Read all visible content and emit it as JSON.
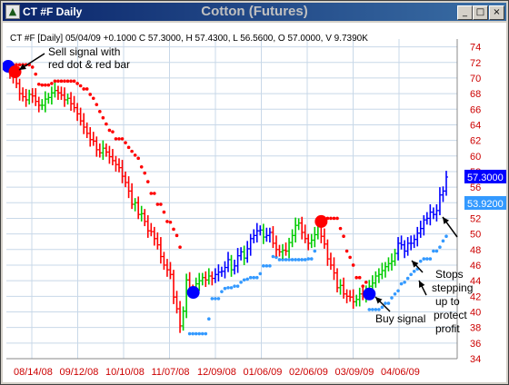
{
  "window": {
    "symbol_title": "CT #F Daily",
    "chart_title": "Cotton (Futures)",
    "minimize_glyph": "_",
    "maximize_glyph": "□",
    "close_glyph": "×",
    "app_icon": "triangle-logo-icon"
  },
  "chart_data": {
    "type": "ohlc",
    "header": "CT #F [Daily] 05/04/09  +0.1000 C 57.3000, H 57.4300, L 56.5600, O 57.0000, V 9.7390K",
    "y_axis_ticks": [
      "74",
      "72",
      "70",
      "68",
      "66",
      "64",
      "62",
      "60",
      "58",
      "56",
      "54",
      "52",
      "50",
      "48",
      "46",
      "44",
      "42",
      "40",
      "38",
      "36",
      "34"
    ],
    "y_tick_values": [
      74,
      72,
      70,
      68,
      66,
      64,
      62,
      60,
      58,
      56,
      54,
      52,
      50,
      48,
      46,
      44,
      42,
      40,
      38,
      36,
      34
    ],
    "ylim": [
      34,
      75
    ],
    "x_axis_labels": [
      "08/14/08",
      "09/12/08",
      "10/10/08",
      "11/07/08",
      "12/09/08",
      "01/06/09",
      "02/06/09",
      "03/09/09",
      "04/06/09"
    ],
    "last_price_label": "57.3000",
    "stop_price_label": "53.9200",
    "last_price": 57.3,
    "stop_price": 53.92,
    "grid": true,
    "colors": {
      "up_bar": "#00cc00",
      "down_bar": "#ff0000",
      "strong_up_bar": "#0000ff",
      "sell_stop_dot": "#ff0000",
      "buy_stop_dot": "#3399ff",
      "sell_signal": "#ff0000",
      "buy_signal": "#0000ff",
      "last_price_bg": "#0000ff",
      "stop_price_bg": "#3399ff",
      "axis_text": "#cc0000"
    },
    "annotations": {
      "sell_line1": "Sell signal with",
      "sell_line2": "red dot & red bar",
      "buy": "Buy signal",
      "stops_line1": "Stops",
      "stops_line2": "stepping",
      "stops_line3": "up to",
      "stops_line4": "protect",
      "stops_line5": "profit"
    },
    "series": [
      {
        "name": "price_close",
        "values": [
          70.5,
          70.2,
          69.3,
          68.0,
          67.6,
          67.2,
          67.9,
          67.7,
          67.0,
          66.5,
          66.5,
          67.3,
          67.5,
          68.1,
          68.4,
          68.1,
          67.8,
          67.2,
          67.4,
          66.7,
          66.2,
          65.4,
          64.5,
          63.7,
          62.9,
          62.1,
          61.9,
          60.8,
          60.4,
          61.0,
          60.5,
          59.9,
          59.4,
          58.9,
          58.5,
          57.4,
          56.6,
          55.5,
          53.8,
          54.0,
          52.5,
          52.6,
          51.6,
          50.4,
          50.3,
          49.4,
          48.6,
          47.1,
          46.0,
          45.4,
          44.8,
          41.9,
          40.4,
          38.2,
          40.1,
          44.1,
          42.9,
          42.7,
          43.6,
          44.0,
          44.4,
          44.1,
          44.6,
          44.3,
          44.8,
          45.1,
          45.2,
          45.7,
          46.7,
          45.4,
          45.9,
          47.2,
          47.7,
          46.9,
          48.1,
          49.4,
          49.8,
          50.4,
          50.5,
          49.6,
          49.8,
          50.2,
          48.8,
          48.0,
          47.7,
          47.9,
          47.8,
          48.9,
          49.8,
          51.1,
          51.4,
          50.2,
          49.4,
          48.8,
          49.2,
          49.9,
          51.0,
          49.7,
          48.7,
          46.8,
          46.0,
          45.0,
          43.1,
          43.4,
          42.3,
          42.0,
          41.9,
          41.3,
          41.6,
          42.3,
          42.1,
          42.8,
          43.3,
          43.7,
          44.6,
          44.8,
          45.3,
          45.8,
          46.2,
          46.5,
          47.5,
          48.8,
          48.6,
          47.8,
          48.8,
          48.8,
          49.3,
          50.1,
          50.7,
          51.8,
          52.0,
          52.8,
          52.5,
          53.0,
          55.0,
          55.5,
          57.3
        ]
      }
    ]
  }
}
